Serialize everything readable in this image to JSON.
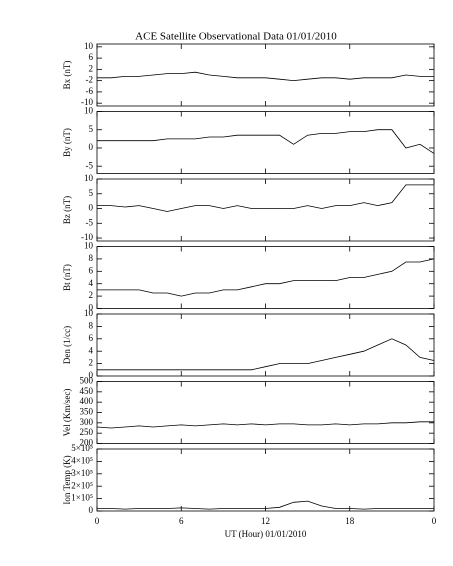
{
  "chart_data": [
    {
      "type": "line",
      "title": "ACE Satellite Observational Data   01/01/2010",
      "ylabel": "Bx (nT)",
      "x": [
        0,
        1,
        2,
        3,
        4,
        5,
        6,
        7,
        8,
        9,
        10,
        11,
        12,
        13,
        14,
        15,
        16,
        17,
        18,
        19,
        20,
        21,
        22,
        23,
        24
      ],
      "values": [
        -1,
        -1,
        -0.5,
        -0.5,
        0,
        0.5,
        0.5,
        1,
        0,
        -0.5,
        -1,
        -1,
        -1,
        -1.5,
        -2,
        -1.5,
        -1,
        -1,
        -1.5,
        -1,
        -1,
        -1,
        0,
        -0.5,
        -0.5
      ],
      "xlim": [
        0,
        24
      ],
      "ylim": [
        -11,
        11
      ],
      "yticks": [
        10,
        6,
        2,
        -2,
        -6,
        -10
      ],
      "color": "#000000"
    },
    {
      "type": "line",
      "ylabel": "By (nT)",
      "x": [
        0,
        1,
        2,
        3,
        4,
        5,
        6,
        7,
        8,
        9,
        10,
        11,
        12,
        13,
        14,
        15,
        16,
        17,
        18,
        19,
        20,
        21,
        22,
        23,
        24
      ],
      "values": [
        2,
        2,
        2,
        2,
        2,
        2.5,
        2.5,
        2.5,
        3,
        3,
        3.5,
        3.5,
        3.5,
        3.5,
        1,
        3.5,
        4,
        4,
        4.5,
        4.5,
        5,
        5,
        0,
        1,
        -1.5
      ],
      "xlim": [
        0,
        24
      ],
      "ylim": [
        -7,
        10
      ],
      "yticks": [
        10,
        5,
        0,
        -5
      ],
      "color": "#000000"
    },
    {
      "type": "line",
      "ylabel": "Bz (nT)",
      "x": [
        0,
        1,
        2,
        3,
        4,
        5,
        6,
        7,
        8,
        9,
        10,
        11,
        12,
        13,
        14,
        15,
        16,
        17,
        18,
        19,
        20,
        21,
        22,
        23,
        24
      ],
      "values": [
        1,
        1,
        0.5,
        1,
        0,
        -1,
        0,
        1,
        1,
        0,
        1,
        0,
        0,
        0,
        0,
        1,
        0,
        1,
        1,
        2,
        1,
        2,
        8,
        8,
        8
      ],
      "xlim": [
        0,
        24
      ],
      "ylim": [
        -11,
        10
      ],
      "yticks": [
        10,
        5,
        0,
        -5,
        -10
      ],
      "color": "#000000"
    },
    {
      "type": "line",
      "ylabel": "Bt (nT)",
      "x": [
        0,
        1,
        2,
        3,
        4,
        5,
        6,
        7,
        8,
        9,
        10,
        11,
        12,
        13,
        14,
        15,
        16,
        17,
        18,
        19,
        20,
        21,
        22,
        23,
        24
      ],
      "values": [
        3,
        3,
        3,
        3,
        2.5,
        2.5,
        2,
        2.5,
        2.5,
        3,
        3,
        3.5,
        4,
        4,
        4.5,
        4.5,
        4.5,
        4.5,
        5,
        5,
        5.5,
        6,
        7.5,
        7.5,
        8
      ],
      "xlim": [
        0,
        24
      ],
      "ylim": [
        0,
        10
      ],
      "yticks": [
        10,
        8,
        6,
        4,
        2,
        0
      ],
      "color": "#000000"
    },
    {
      "type": "line",
      "ylabel": "Den (1/cc)",
      "x": [
        0,
        1,
        2,
        3,
        4,
        5,
        6,
        7,
        8,
        9,
        10,
        11,
        12,
        13,
        14,
        15,
        16,
        17,
        18,
        19,
        20,
        21,
        22,
        23,
        24
      ],
      "values": [
        1,
        1,
        1,
        1,
        1,
        1,
        1,
        1,
        1,
        1,
        1,
        1,
        1.5,
        2,
        2,
        2,
        2.5,
        3,
        3.5,
        4,
        5,
        6,
        5,
        3,
        2.5
      ],
      "xlim": [
        0,
        24
      ],
      "ylim": [
        0,
        10
      ],
      "yticks": [
        10,
        8,
        6,
        4,
        2,
        0
      ],
      "color": "#000000"
    },
    {
      "type": "line",
      "ylabel": "Vel (Km/sec)",
      "x": [
        0,
        1,
        2,
        3,
        4,
        5,
        6,
        7,
        8,
        9,
        10,
        11,
        12,
        13,
        14,
        15,
        16,
        17,
        18,
        19,
        20,
        21,
        22,
        23,
        24
      ],
      "values": [
        280,
        275,
        280,
        285,
        280,
        285,
        290,
        285,
        290,
        295,
        290,
        295,
        290,
        295,
        295,
        290,
        290,
        295,
        290,
        295,
        295,
        300,
        300,
        305,
        305
      ],
      "xlim": [
        0,
        24
      ],
      "ylim": [
        200,
        500
      ],
      "yticks": [
        500,
        450,
        400,
        350,
        300,
        250,
        200
      ],
      "color": "#000000"
    },
    {
      "type": "line",
      "ylabel": "Ion Temp (K)",
      "xlabel": "UT (Hour)   01/01/2010",
      "x": [
        0,
        1,
        2,
        3,
        4,
        5,
        6,
        7,
        8,
        9,
        10,
        11,
        12,
        13,
        14,
        15,
        16,
        17,
        18,
        19,
        20,
        21,
        22,
        23,
        24
      ],
      "values": [
        20000,
        20000,
        15000,
        20000,
        20000,
        20000,
        25000,
        20000,
        15000,
        20000,
        20000,
        20000,
        20000,
        30000,
        70000,
        80000,
        40000,
        20000,
        20000,
        15000,
        20000,
        20000,
        20000,
        20000,
        20000
      ],
      "xlim": [
        0,
        24
      ],
      "ylim": [
        0,
        500000
      ],
      "yticks": [
        {
          "value": 500000,
          "label": "5×10⁵"
        },
        {
          "value": 400000,
          "label": "4×10⁵"
        },
        {
          "value": 300000,
          "label": "3×10⁵"
        },
        {
          "value": 200000,
          "label": "2×10⁵"
        },
        {
          "value": 100000,
          "label": "1×10⁵"
        },
        0
      ],
      "xticks": [
        0,
        6,
        12,
        18,
        {
          "value": 24,
          "label": "0"
        }
      ],
      "color": "#000000"
    }
  ]
}
